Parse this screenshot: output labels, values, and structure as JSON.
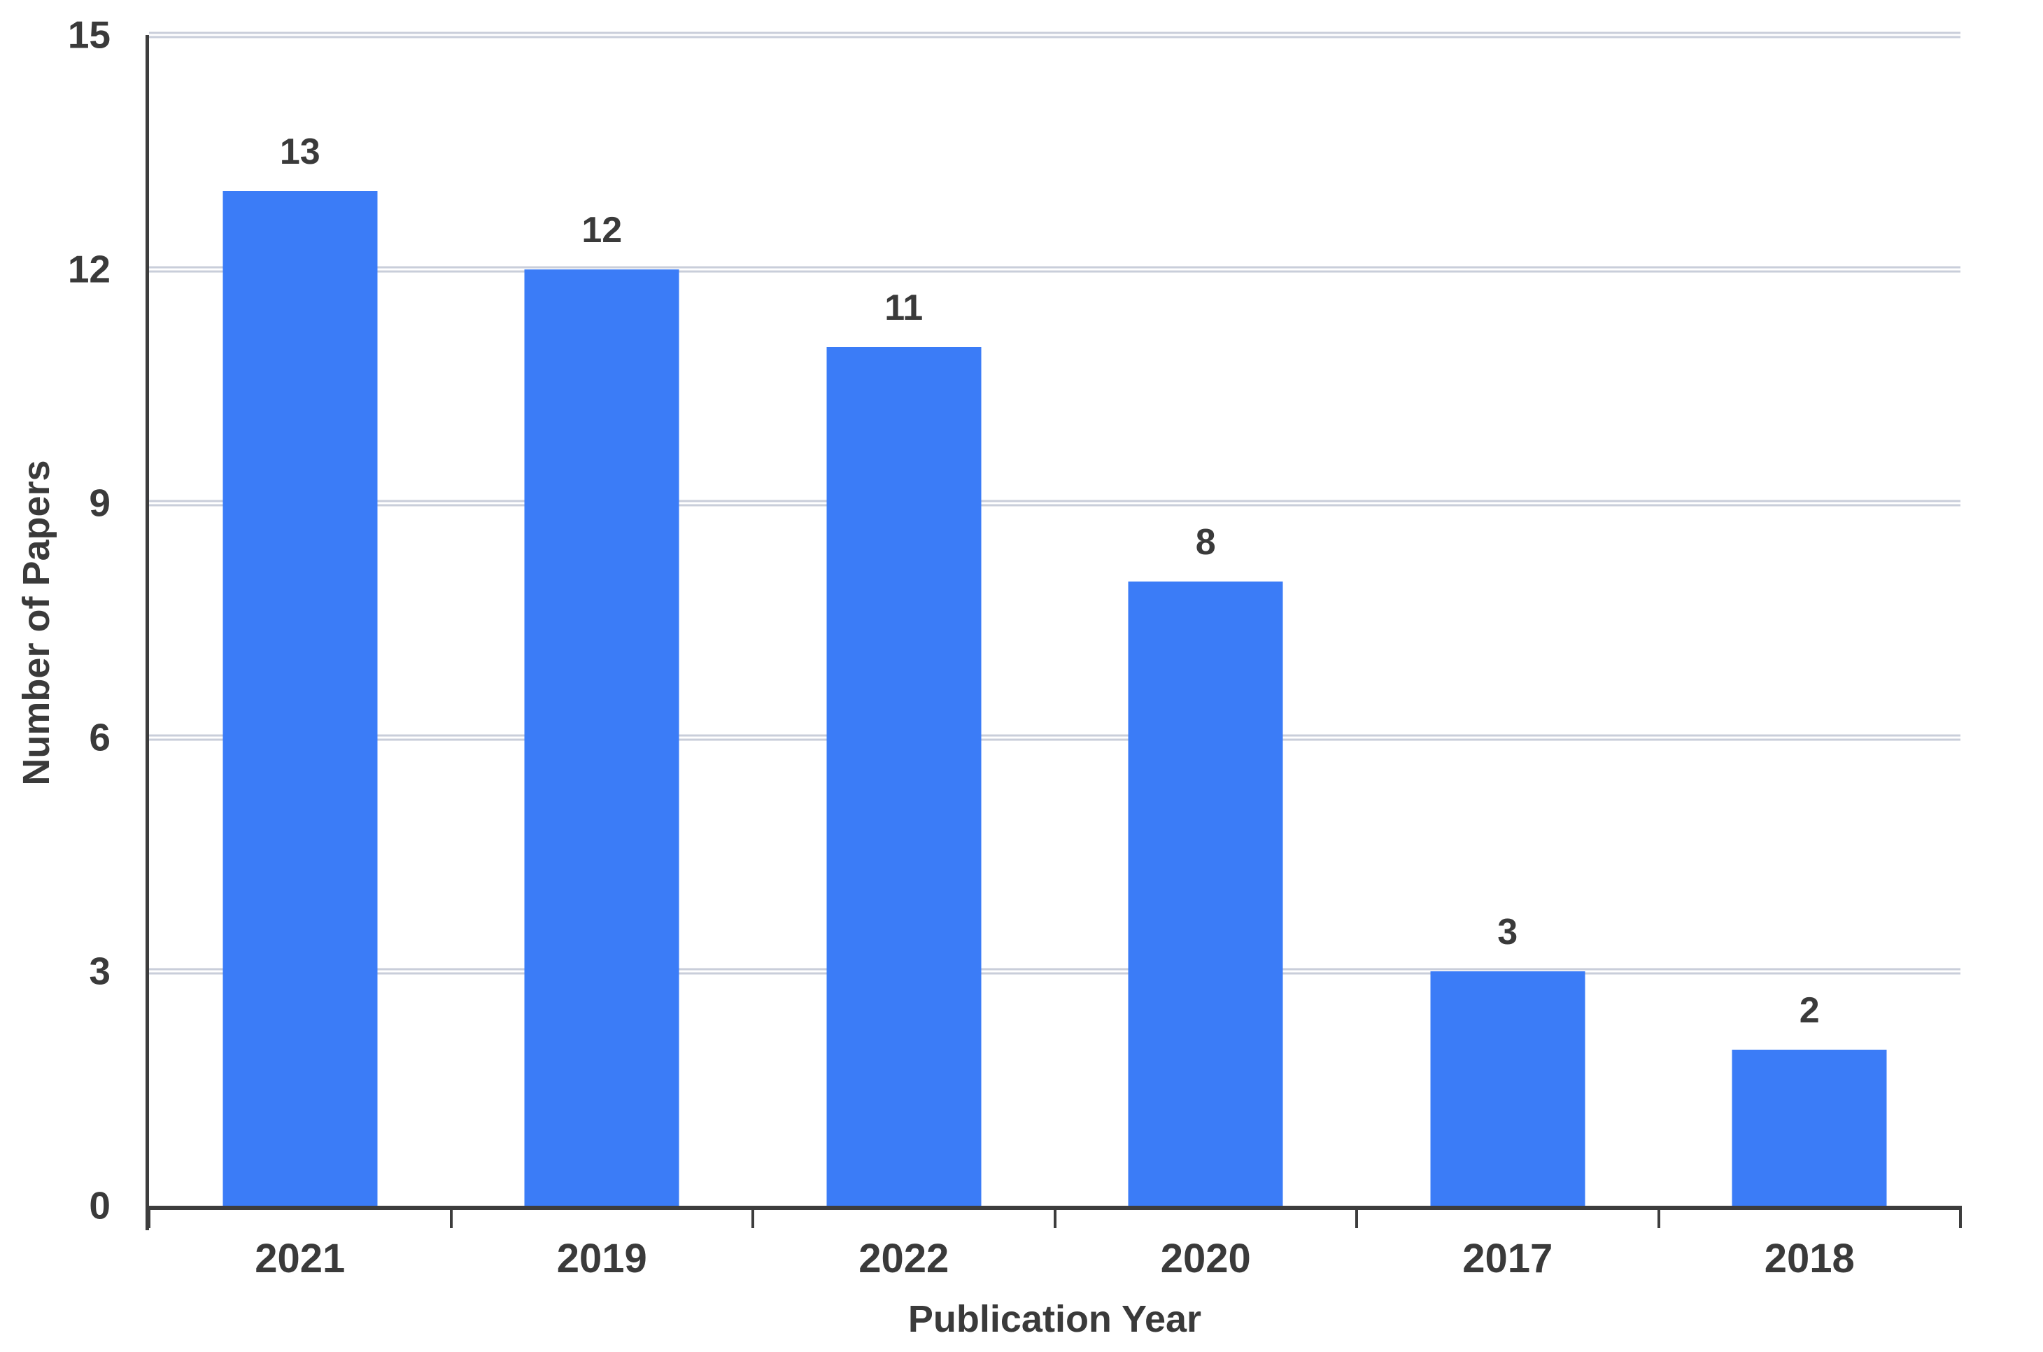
{
  "chart_data": {
    "type": "bar",
    "categories": [
      "2021",
      "2019",
      "2022",
      "2020",
      "2017",
      "2018"
    ],
    "values": [
      13,
      12,
      11,
      8,
      3,
      2
    ],
    "title": "",
    "xlabel": "Publication Year",
    "ylabel": "Number of Papers",
    "ylim": [
      0,
      15
    ],
    "yticks": [
      0,
      3,
      6,
      9,
      12,
      15
    ],
    "grid": true,
    "legend": "none",
    "bar_color": "#3b7cf7",
    "gridline_color": "#c9ceda",
    "axis_color": "#3d3d3d",
    "text_color": "#3a3a3a"
  }
}
